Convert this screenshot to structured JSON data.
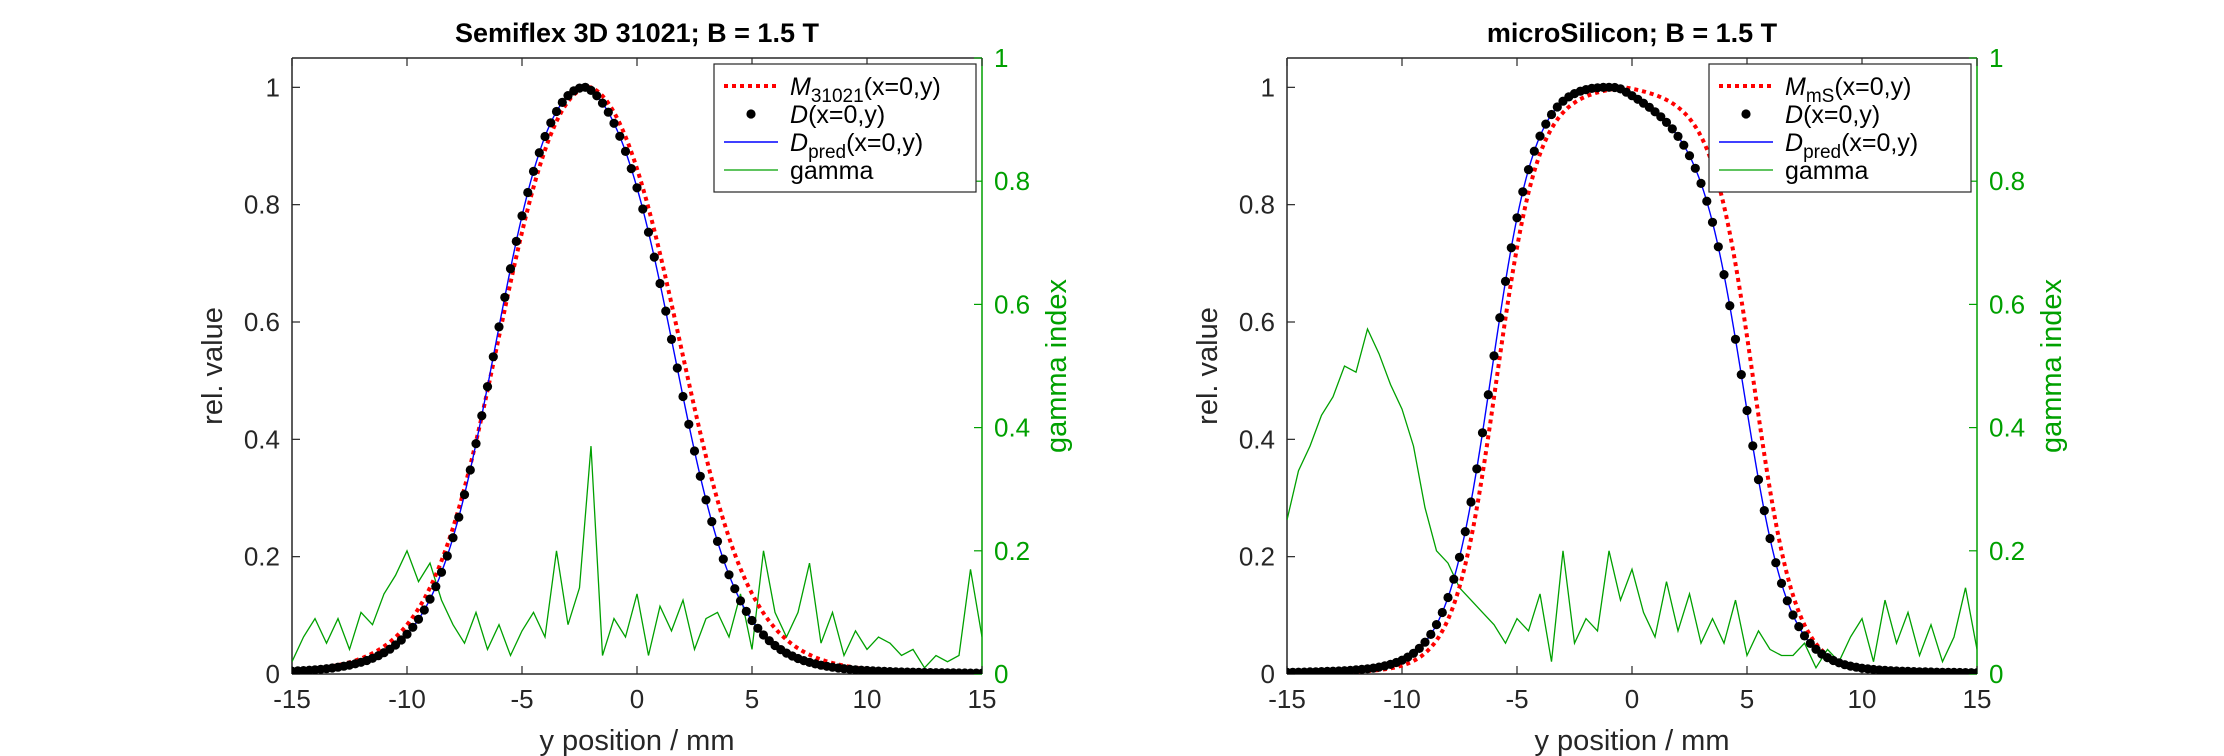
{
  "chart_data": [
    {
      "type": "line",
      "title": "Semiflex 3D 31021; B = 1.5 T",
      "xlabel": "y position / mm",
      "ylabel": "rel. value",
      "y2label": "gamma index",
      "xlim": [
        -15,
        15
      ],
      "ylim": [
        0,
        1.05
      ],
      "y2lim": [
        0,
        1
      ],
      "xticks": [
        -15,
        -10,
        -5,
        0,
        5,
        10,
        15
      ],
      "yticks": [
        0,
        0.2,
        0.4,
        0.6,
        0.8,
        1
      ],
      "y2ticks": [
        0,
        0.2,
        0.4,
        0.6,
        0.8,
        1
      ],
      "grid": false,
      "legend_position": "top-right",
      "colors": {
        "measurement": "#ff0000",
        "dose": "#000000",
        "prediction": "#0000ff",
        "gamma": "#00a000",
        "axis2": "#00a000"
      },
      "legend": [
        {
          "key": "measurement",
          "main": "M",
          "sub": "31021",
          "args": "(x=0,y)"
        },
        {
          "key": "dose",
          "main": "D",
          "sub": "",
          "args": "(x=0,y)"
        },
        {
          "key": "prediction",
          "main": "D",
          "sub": "pred",
          "args": "(x=0,y)"
        },
        {
          "key": "gamma",
          "main": "gamma",
          "sub": "",
          "args": ""
        }
      ],
      "profile": {
        "center": -2.2,
        "w": 7.8,
        "s": 1.35,
        "plateau": 0.05,
        "base": 0.04,
        "tail": 4.0
      },
      "measurement_profile": {
        "center": -2.0,
        "w": 7.8,
        "s": 1.55,
        "plateau": 0.04,
        "base": 0.025,
        "tail": 4.0
      },
      "gamma": {
        "x": [
          -15,
          -14.5,
          -14,
          -13.5,
          -13,
          -12.5,
          -12,
          -11.5,
          -11,
          -10.5,
          -10,
          -9.5,
          -9,
          -8.5,
          -8,
          -7.5,
          -7,
          -6.5,
          -6,
          -5.5,
          -5,
          -4.5,
          -4,
          -3.5,
          -3,
          -2.5,
          -2,
          -1.5,
          -1,
          -0.5,
          0,
          0.5,
          1,
          1.5,
          2,
          2.5,
          3,
          3.5,
          4,
          4.5,
          5,
          5.5,
          6,
          6.5,
          7,
          7.5,
          8,
          8.5,
          9,
          9.5,
          10,
          10.5,
          11,
          11.5,
          12,
          12.5,
          13,
          13.5,
          14,
          14.5,
          15
        ],
        "y": [
          0.02,
          0.06,
          0.09,
          0.05,
          0.09,
          0.04,
          0.1,
          0.08,
          0.13,
          0.16,
          0.2,
          0.15,
          0.18,
          0.12,
          0.08,
          0.05,
          0.1,
          0.04,
          0.08,
          0.03,
          0.07,
          0.1,
          0.06,
          0.2,
          0.08,
          0.14,
          0.37,
          0.03,
          0.09,
          0.06,
          0.13,
          0.03,
          0.11,
          0.07,
          0.12,
          0.04,
          0.09,
          0.1,
          0.06,
          0.13,
          0.04,
          0.2,
          0.1,
          0.06,
          0.1,
          0.18,
          0.05,
          0.1,
          0.03,
          0.07,
          0.04,
          0.06,
          0.05,
          0.03,
          0.04,
          0.01,
          0.03,
          0.02,
          0.03,
          0.17,
          0.06
        ]
      }
    },
    {
      "type": "line",
      "title": "microSilicon; B = 1.5 T",
      "xlabel": "y position / mm",
      "ylabel": "rel. value",
      "y2label": "gamma index",
      "xlim": [
        -15,
        15
      ],
      "ylim": [
        0,
        1.05
      ],
      "y2lim": [
        0,
        1
      ],
      "xticks": [
        -15,
        -10,
        -5,
        0,
        5,
        10,
        15
      ],
      "yticks": [
        0,
        0.2,
        0.4,
        0.6,
        0.8,
        1
      ],
      "y2ticks": [
        0,
        0.2,
        0.4,
        0.6,
        0.8,
        1
      ],
      "grid": false,
      "legend_position": "top-right",
      "colors": {
        "measurement": "#ff0000",
        "dose": "#000000",
        "prediction": "#0000ff",
        "gamma": "#00a000",
        "axis2": "#00a000"
      },
      "legend": [
        {
          "key": "measurement",
          "main": "M",
          "sub": "mS",
          "args": "(x=0,y)"
        },
        {
          "key": "dose",
          "main": "D",
          "sub": "",
          "args": "(x=0,y)"
        },
        {
          "key": "prediction",
          "main": "D",
          "sub": "pred",
          "args": "(x=0,y)"
        },
        {
          "key": "gamma",
          "main": "gamma",
          "sub": "",
          "args": ""
        }
      ],
      "profile": {
        "center": -0.6,
        "w": 11.0,
        "s": 0.95,
        "plateau": 0.05,
        "base": 0.05,
        "tail": 4.0
      },
      "measurement_profile": {
        "center": -0.3,
        "w": 11.2,
        "s": 0.9,
        "plateau": 0.005,
        "base": 0.03,
        "tail": 4.0
      },
      "gamma": {
        "x": [
          -15,
          -14.5,
          -14,
          -13.5,
          -13,
          -12.5,
          -12,
          -11.5,
          -11,
          -10.5,
          -10,
          -9.5,
          -9,
          -8.5,
          -8,
          -7.5,
          -7,
          -6.5,
          -6,
          -5.5,
          -5,
          -4.5,
          -4,
          -3.5,
          -3,
          -2.5,
          -2,
          -1.5,
          -1,
          -0.5,
          0,
          0.5,
          1,
          1.5,
          2,
          2.5,
          3,
          3.5,
          4,
          4.5,
          5,
          5.5,
          6,
          6.5,
          7,
          7.5,
          8,
          8.5,
          9,
          9.5,
          10,
          10.5,
          11,
          11.5,
          12,
          12.5,
          13,
          13.5,
          14,
          14.5,
          15
        ],
        "y": [
          0.25,
          0.33,
          0.37,
          0.42,
          0.45,
          0.5,
          0.49,
          0.56,
          0.52,
          0.47,
          0.43,
          0.37,
          0.27,
          0.2,
          0.18,
          0.14,
          0.12,
          0.1,
          0.08,
          0.05,
          0.09,
          0.07,
          0.13,
          0.02,
          0.2,
          0.05,
          0.09,
          0.07,
          0.2,
          0.12,
          0.17,
          0.1,
          0.06,
          0.15,
          0.07,
          0.13,
          0.05,
          0.09,
          0.05,
          0.12,
          0.03,
          0.07,
          0.04,
          0.03,
          0.03,
          0.05,
          0.01,
          0.04,
          0.02,
          0.06,
          0.09,
          0.02,
          0.12,
          0.05,
          0.1,
          0.03,
          0.08,
          0.02,
          0.06,
          0.14,
          0.04
        ]
      }
    }
  ]
}
